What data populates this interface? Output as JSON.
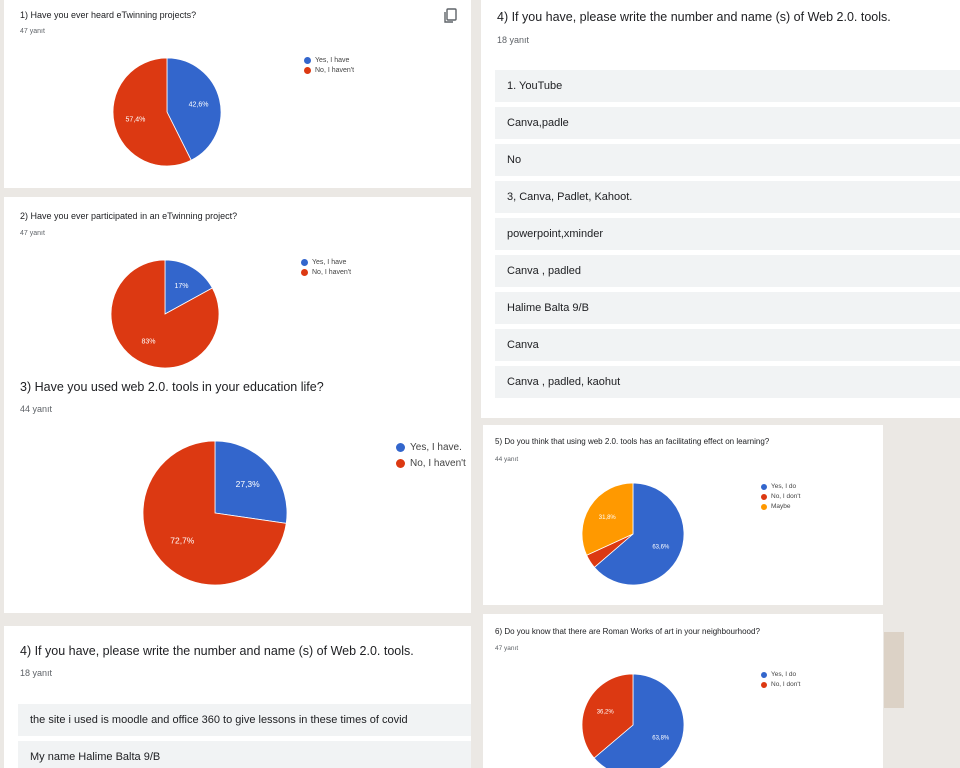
{
  "colors": {
    "yes": "#3366cc",
    "no": "#dc3912",
    "maybe": "#ff9900",
    "row_bg": "#f1f3f4"
  },
  "q1": {
    "title": "1) Have you ever heard eTwinning projects?",
    "count": "47 yanıt",
    "copy_icon": "copy-icon",
    "legend": [
      "Yes, I have",
      "No, I haven't"
    ],
    "slices": [
      {
        "label": "Yes, I have",
        "value": 42.6,
        "text": "42,6%"
      },
      {
        "label": "No, I haven't",
        "value": 57.4,
        "text": "57,4%"
      }
    ]
  },
  "q2": {
    "title": "2) Have you ever participated in an eTwinning project?",
    "count": "47 yanıt",
    "legend": [
      "Yes, I have",
      "No, I haven't"
    ],
    "slices": [
      {
        "label": "Yes, I have",
        "value": 17,
        "text": "17%"
      },
      {
        "label": "No, I haven't",
        "value": 83,
        "text": "83%"
      }
    ]
  },
  "q3": {
    "title": "3) Have you used web 2.0. tools in your education life?",
    "count": "44 yanıt",
    "legend": [
      "Yes, I have.",
      "No, I haven't"
    ],
    "slices": [
      {
        "label": "Yes, I have.",
        "value": 27.3,
        "text": "27,3%"
      },
      {
        "label": "No, I haven't",
        "value": 72.7,
        "text": "72,7%"
      }
    ]
  },
  "q4a": {
    "title": "4) If you have, please write the number and name (s) of Web 2.0. tools.",
    "count": "18 yanıt",
    "responses": [
      "1. YouTube",
      "Canva,padle",
      "No",
      "3, Canva, Padlet, Kahoot.",
      "powerpoint,xminder",
      "Canva , padled",
      "Halime Balta 9/B",
      "Canva",
      "Canva , padled, kaohut"
    ]
  },
  "q4b": {
    "title": "4) If you have, please write the number and name (s) of Web 2.0. tools.",
    "count": "18 yanıt",
    "responses": [
      "the site i used is moodle and office 360 to give lessons in these times of covid",
      "My name Halime Balta 9/B"
    ]
  },
  "q5": {
    "title": "5) Do you think that using web 2.0. tools has an facilitating effect on learning?",
    "count": "44 yanıt",
    "legend": [
      "Yes, I do",
      "No, I don't",
      "Maybe"
    ],
    "slices": [
      {
        "label": "Yes, I do",
        "value": 63.6,
        "text": "63,6%"
      },
      {
        "label": "No, I don't",
        "value": 4.5,
        "text": ""
      },
      {
        "label": "Maybe",
        "value": 31.8,
        "text": "31,8%"
      }
    ]
  },
  "q6": {
    "title": "6) Do you know that there are Roman Works of art in your neighbourhood?",
    "count": "47 yanıt",
    "legend": [
      "Yes, I do",
      "No, I don't"
    ],
    "slices": [
      {
        "label": "Yes, I do",
        "value": 63.8,
        "text": "63,8%"
      },
      {
        "label": "No, I don't",
        "value": 36.2,
        "text": "36,2%"
      }
    ]
  }
}
